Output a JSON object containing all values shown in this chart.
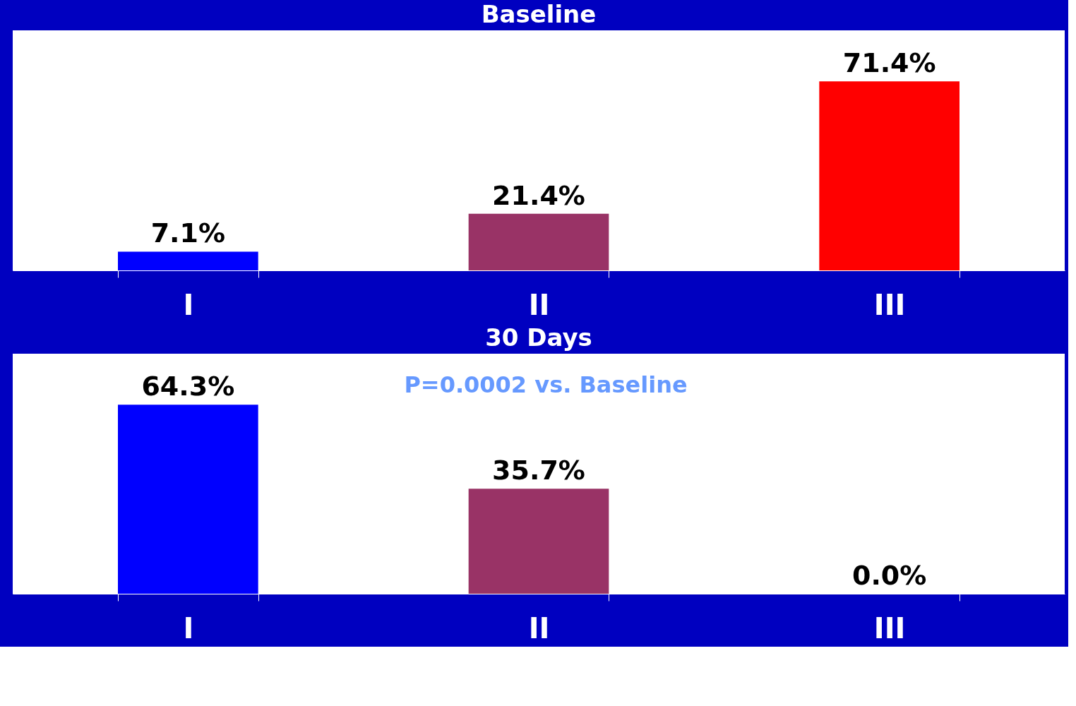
{
  "chart_data": [
    {
      "type": "bar",
      "title": "Baseline",
      "categories": [
        "I",
        "II",
        "III"
      ],
      "values": [
        7.1,
        21.4,
        71.4
      ],
      "value_labels": [
        "7.1%",
        "21.4%",
        "71.4%"
      ],
      "colors": [
        "#0000ff",
        "#993366",
        "#ff0000"
      ],
      "tick_labels": "x"
    },
    {
      "type": "bar",
      "title": "30 Days",
      "categories": [
        "I",
        "II",
        "III"
      ],
      "values": [
        64.3,
        35.7,
        0.0
      ],
      "value_labels": [
        "64.3%",
        "35.7%",
        "0.0%"
      ],
      "colors": [
        "#0000ff",
        "#993366",
        "#ff0000"
      ],
      "tick_labels": "x",
      "annotations": [
        "P=0.0002 vs. Baseline"
      ]
    }
  ]
}
